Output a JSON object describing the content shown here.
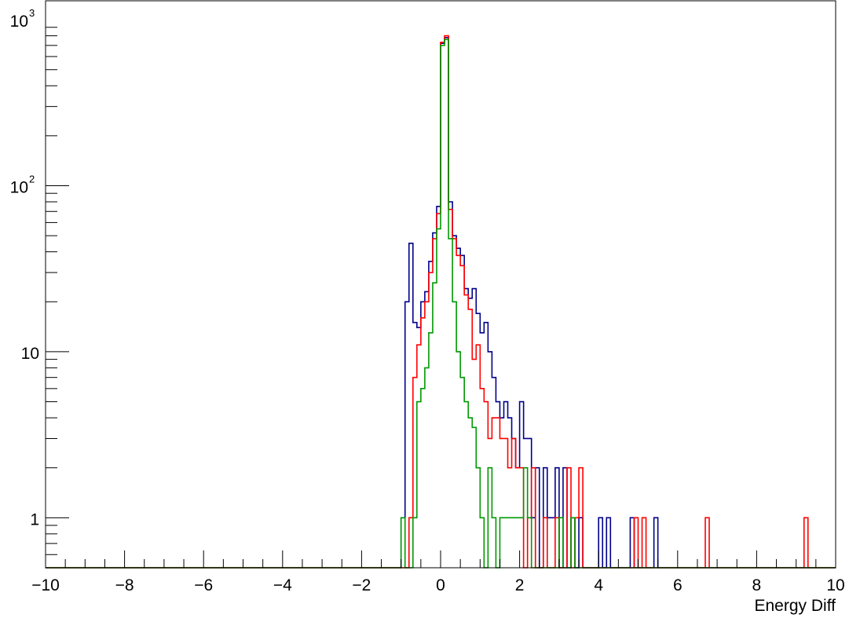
{
  "chart_data": {
    "type": "line",
    "style": "step-histogram",
    "xlabel": "Energy Diff",
    "ylabel": "",
    "xlim": [
      -10,
      10
    ],
    "ylim": [
      0.5,
      1300
    ],
    "y_scale": "log",
    "grid": false,
    "bin_width": 0.1,
    "x_ticks": [
      "-10",
      "-8",
      "-6",
      "-4",
      "-2",
      "0",
      "2",
      "4",
      "6",
      "8",
      "10"
    ],
    "y_ticks": [
      {
        "value": 1,
        "base": "1",
        "exp": ""
      },
      {
        "value": 10,
        "base": "10",
        "exp": ""
      },
      {
        "value": 100,
        "base": "10",
        "exp": "2"
      },
      {
        "value": 1000,
        "base": "10",
        "exp": "3"
      }
    ],
    "series": [
      {
        "color": "#00008b",
        "points": [
          [
            -1.0,
            1
          ],
          [
            -0.9,
            20
          ],
          [
            -0.8,
            45
          ],
          [
            -0.7,
            15
          ],
          [
            -0.6,
            14
          ],
          [
            -0.5,
            20
          ],
          [
            -0.4,
            23
          ],
          [
            -0.3,
            35
          ],
          [
            -0.2,
            52
          ],
          [
            -0.1,
            75
          ],
          [
            0.0,
            720
          ],
          [
            0.1,
            780
          ],
          [
            0.2,
            80
          ],
          [
            0.3,
            50
          ],
          [
            0.4,
            42
          ],
          [
            0.5,
            38
          ],
          [
            0.6,
            24
          ],
          [
            0.7,
            21
          ],
          [
            0.8,
            24
          ],
          [
            0.9,
            17
          ],
          [
            1.0,
            13
          ],
          [
            1.1,
            15
          ],
          [
            1.2,
            10
          ],
          [
            1.3,
            7
          ],
          [
            1.4,
            5
          ],
          [
            1.5,
            4
          ],
          [
            1.6,
            5
          ],
          [
            1.7,
            4
          ],
          [
            1.8,
            3
          ],
          [
            1.9,
            2
          ],
          [
            2.0,
            5
          ],
          [
            2.1,
            3
          ],
          [
            2.2,
            3
          ],
          [
            2.3,
            1
          ],
          [
            2.4,
            2
          ],
          [
            2.6,
            2
          ],
          [
            2.7,
            1
          ],
          [
            2.8,
            1
          ],
          [
            2.9,
            2
          ],
          [
            3.1,
            2
          ],
          [
            3.3,
            1
          ],
          [
            3.5,
            1
          ],
          [
            4.0,
            1
          ],
          [
            4.2,
            1
          ],
          [
            4.8,
            1
          ],
          [
            5.4,
            1
          ]
        ]
      },
      {
        "color": "#ff0000",
        "points": [
          [
            -0.8,
            1
          ],
          [
            -0.7,
            7
          ],
          [
            -0.6,
            11
          ],
          [
            -0.5,
            16
          ],
          [
            -0.4,
            20
          ],
          [
            -0.3,
            30
          ],
          [
            -0.2,
            48
          ],
          [
            -0.1,
            68
          ],
          [
            0.0,
            730
          ],
          [
            0.1,
            800
          ],
          [
            0.2,
            72
          ],
          [
            0.3,
            48
          ],
          [
            0.4,
            38
          ],
          [
            0.5,
            33
          ],
          [
            0.6,
            22
          ],
          [
            0.7,
            18
          ],
          [
            0.8,
            9
          ],
          [
            0.9,
            11
          ],
          [
            1.0,
            6
          ],
          [
            1.1,
            5
          ],
          [
            1.2,
            3
          ],
          [
            1.3,
            4
          ],
          [
            1.4,
            4
          ],
          [
            1.5,
            3
          ],
          [
            1.6,
            3
          ],
          [
            1.7,
            2
          ],
          [
            1.8,
            3
          ],
          [
            1.9,
            2
          ],
          [
            2.0,
            2
          ],
          [
            2.2,
            1
          ],
          [
            2.3,
            2
          ],
          [
            2.6,
            1
          ],
          [
            2.9,
            1
          ],
          [
            3.2,
            2
          ],
          [
            3.4,
            1
          ],
          [
            3.5,
            2
          ],
          [
            4.9,
            1
          ],
          [
            5.1,
            1
          ],
          [
            6.7,
            1
          ],
          [
            9.2,
            1
          ]
        ]
      },
      {
        "color": "#009900",
        "points": [
          [
            -1.0,
            1
          ],
          [
            -0.7,
            1
          ],
          [
            -0.6,
            5
          ],
          [
            -0.5,
            6
          ],
          [
            -0.4,
            8
          ],
          [
            -0.3,
            13
          ],
          [
            -0.2,
            26
          ],
          [
            -0.1,
            55
          ],
          [
            0.0,
            700
          ],
          [
            0.1,
            760
          ],
          [
            0.2,
            48
          ],
          [
            0.3,
            20
          ],
          [
            0.4,
            10
          ],
          [
            0.5,
            7
          ],
          [
            0.6,
            5
          ],
          [
            0.7,
            4
          ],
          [
            0.8,
            3.5
          ],
          [
            0.9,
            2
          ],
          [
            1.0,
            1
          ],
          [
            1.2,
            2
          ],
          [
            1.3,
            1
          ],
          [
            1.5,
            1
          ],
          [
            1.6,
            1
          ],
          [
            1.7,
            1
          ],
          [
            1.8,
            1
          ],
          [
            1.9,
            1
          ],
          [
            2.0,
            1
          ],
          [
            2.1,
            2
          ],
          [
            2.2,
            1
          ],
          [
            3.0,
            1
          ],
          [
            3.3,
            1
          ]
        ]
      }
    ]
  }
}
